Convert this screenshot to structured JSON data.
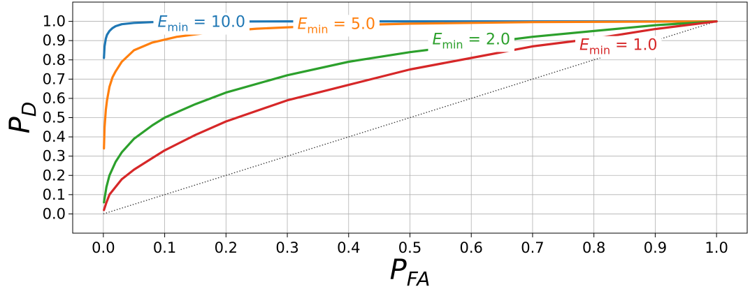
{
  "chart_data": {
    "type": "line",
    "title": "",
    "xlabel": "P",
    "xlabel_sub": "FA",
    "ylabel": "P",
    "ylabel_sub": "D",
    "xlim": [
      -0.05,
      1.05
    ],
    "ylim": [
      -0.1,
      1.1
    ],
    "x_ticks": [
      0.0,
      0.1,
      0.2,
      0.3,
      0.4,
      0.5,
      0.6,
      0.7,
      0.8,
      0.9,
      1.0
    ],
    "x_tick_labels": [
      "0.0",
      "0.1",
      "0.2",
      "0.3",
      "0.4",
      "0.5",
      "0.6",
      "0.7",
      "0.8",
      "0.9",
      "1.0"
    ],
    "y_ticks": [
      0.0,
      0.1,
      0.2,
      0.3,
      0.4,
      0.5,
      0.6,
      0.7,
      0.8,
      0.9,
      1.0
    ],
    "y_tick_labels": [
      "0.0",
      "0.1",
      "0.2",
      "0.3",
      "0.4",
      "0.5",
      "0.6",
      "0.7",
      "0.8",
      "0.9",
      "1.0"
    ],
    "grid": true,
    "legend": "none",
    "reference_line": {
      "x": [
        0.0,
        1.0
      ],
      "y": [
        0.0,
        1.0
      ],
      "style": "dotted",
      "color": "#333333"
    },
    "series": [
      {
        "label_prefix": "E",
        "label_sub": "min",
        "label_value": " = 10.0",
        "color": "#1f77b4",
        "label_anchor": [
          0.16,
          1.0
        ],
        "x": [
          0.001,
          0.002,
          0.004,
          0.006,
          0.01,
          0.015,
          0.02,
          0.03,
          0.05,
          0.08,
          0.12,
          0.2,
          0.3,
          0.45,
          0.6,
          0.8,
          1.0
        ],
        "y": [
          0.81,
          0.87,
          0.91,
          0.93,
          0.95,
          0.965,
          0.975,
          0.985,
          0.992,
          0.996,
          0.998,
          0.999,
          1.0,
          1.0,
          1.0,
          1.0,
          1.0
        ]
      },
      {
        "label_prefix": "E",
        "label_sub": "min",
        "label_value": " = 5.0",
        "color": "#ff7f0e",
        "label_anchor": [
          0.38,
          0.99
        ],
        "x": [
          0.001,
          0.002,
          0.004,
          0.006,
          0.01,
          0.015,
          0.02,
          0.03,
          0.05,
          0.08,
          0.12,
          0.18,
          0.25,
          0.35,
          0.5,
          0.7,
          1.0
        ],
        "y": [
          0.34,
          0.45,
          0.54,
          0.59,
          0.66,
          0.71,
          0.74,
          0.79,
          0.85,
          0.89,
          0.92,
          0.945,
          0.962,
          0.976,
          0.988,
          0.996,
          1.0
        ]
      },
      {
        "label_prefix": "E",
        "label_sub": "min",
        "label_value": " = 2.0",
        "color": "#2ca02c",
        "label_anchor": [
          0.6,
          0.91
        ],
        "x": [
          0.001,
          0.005,
          0.01,
          0.02,
          0.03,
          0.05,
          0.08,
          0.1,
          0.15,
          0.2,
          0.3,
          0.4,
          0.5,
          0.6,
          0.7,
          0.8,
          0.9,
          1.0
        ],
        "y": [
          0.06,
          0.14,
          0.2,
          0.27,
          0.32,
          0.39,
          0.46,
          0.5,
          0.57,
          0.63,
          0.72,
          0.79,
          0.84,
          0.88,
          0.92,
          0.95,
          0.98,
          1.0
        ]
      },
      {
        "label_prefix": "E",
        "label_sub": "min",
        "label_value": " = 1.0",
        "color": "#d62728",
        "label_anchor": [
          0.84,
          0.88
        ],
        "x": [
          0.001,
          0.005,
          0.01,
          0.02,
          0.03,
          0.05,
          0.08,
          0.1,
          0.15,
          0.2,
          0.3,
          0.4,
          0.5,
          0.6,
          0.7,
          0.8,
          0.9,
          1.0
        ],
        "y": [
          0.02,
          0.06,
          0.1,
          0.14,
          0.18,
          0.23,
          0.29,
          0.33,
          0.41,
          0.48,
          0.59,
          0.67,
          0.75,
          0.81,
          0.87,
          0.91,
          0.96,
          1.0
        ]
      }
    ]
  }
}
